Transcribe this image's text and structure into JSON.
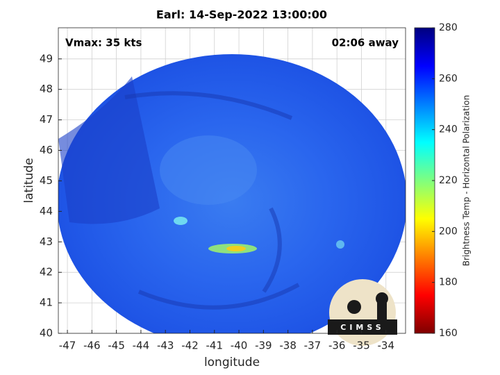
{
  "chart_data": {
    "type": "image",
    "title": "Earl: 14-Sep-2022 13:00:00",
    "xlabel": "longitude",
    "ylabel": "latitude",
    "xlim": [
      -47.37,
      -33.2
    ],
    "ylim": [
      40,
      50.02
    ],
    "xticks": [
      -47,
      -46,
      -45,
      -44,
      -43,
      -42,
      -41,
      -40,
      -39,
      -38,
      -37,
      -36,
      -35,
      -34
    ],
    "yticks": [
      40,
      41,
      42,
      43,
      44,
      45,
      46,
      47,
      48,
      49
    ],
    "grid": true,
    "annotations": [
      "Vmax: 35 kts",
      "02:06 away"
    ],
    "logo": "CIMSS",
    "colorbar": {
      "label": "Brightness Temp - Horizontal Polarization",
      "lim": [
        160,
        280
      ],
      "ticks": [
        160,
        180,
        200,
        220,
        240,
        260,
        280
      ],
      "colormap": [
        "#7f0000",
        "#ff0000",
        "#ff7f00",
        "#ffff00",
        "#7fff7f",
        "#00ffff",
        "#007fff",
        "#0000ff",
        "#00007f"
      ]
    }
  }
}
